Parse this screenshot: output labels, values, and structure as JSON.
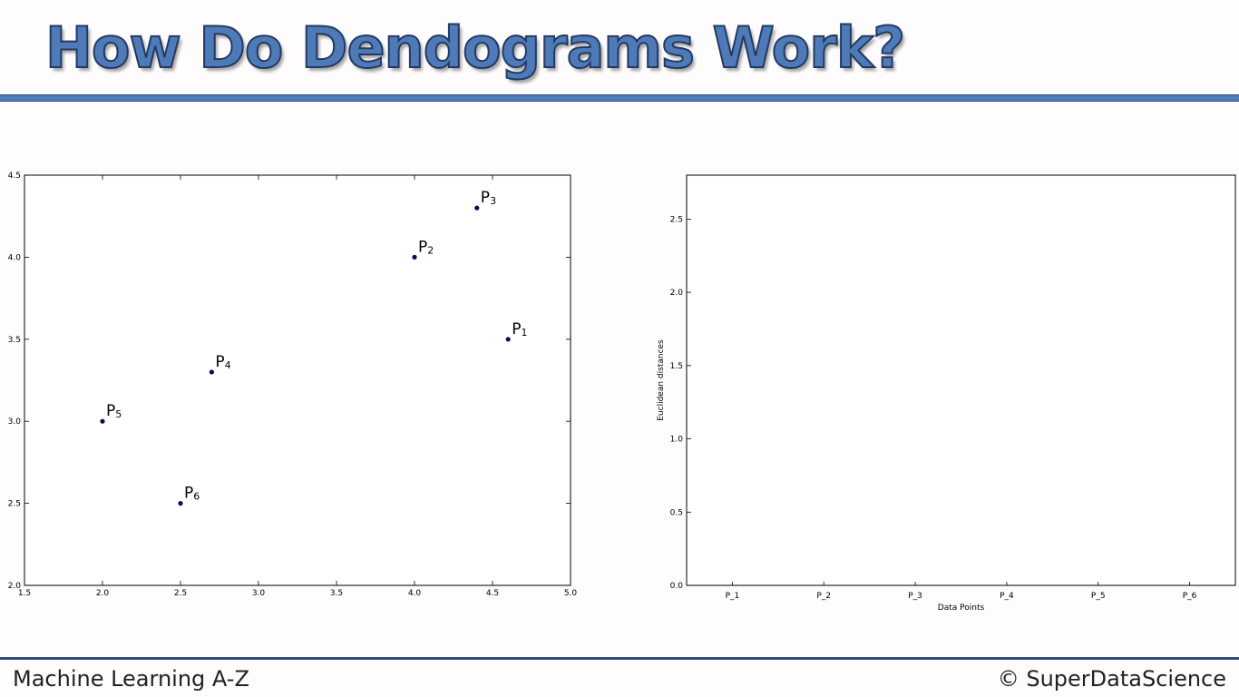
{
  "slide": {
    "title": "How Do Dendograms Work?",
    "footer_left": "Machine Learning A-Z",
    "footer_right": "© SuperDataScience",
    "accent_color": "#4f7ab8",
    "rule_color": "#2c4d7e"
  },
  "chart_data": [
    {
      "type": "scatter",
      "title": "",
      "xlabel": "",
      "ylabel": "",
      "xlim": [
        1.5,
        5.0
      ],
      "ylim": [
        2.0,
        4.5
      ],
      "xticks": [
        "1.5",
        "2.0",
        "2.5",
        "3.0",
        "3.5",
        "4.0",
        "4.5",
        "5.0"
      ],
      "yticks": [
        "2.0",
        "2.5",
        "3.0",
        "3.5",
        "4.0",
        "4.5"
      ],
      "grid": false,
      "marker_color": "#0b0b4f",
      "points": [
        {
          "label": "P",
          "sub": "1",
          "x": 4.6,
          "y": 3.5
        },
        {
          "label": "P",
          "sub": "2",
          "x": 4.0,
          "y": 4.0
        },
        {
          "label": "P",
          "sub": "3",
          "x": 4.4,
          "y": 4.3
        },
        {
          "label": "P",
          "sub": "4",
          "x": 2.7,
          "y": 3.3
        },
        {
          "label": "P",
          "sub": "5",
          "x": 2.0,
          "y": 3.0
        },
        {
          "label": "P",
          "sub": "6",
          "x": 2.5,
          "y": 2.5
        }
      ]
    },
    {
      "type": "dendrogram",
      "title": "",
      "xlabel": "Data Points",
      "ylabel": "Euclidean distances",
      "ylim": [
        0.0,
        2.8
      ],
      "yticks": [
        "0.0",
        "0.5",
        "1.0",
        "1.5",
        "2.0",
        "2.5"
      ],
      "categories": [
        "P_1",
        "P_2",
        "P_3",
        "P_4",
        "P_5",
        "P_6"
      ],
      "grid": false,
      "links": []
    }
  ]
}
